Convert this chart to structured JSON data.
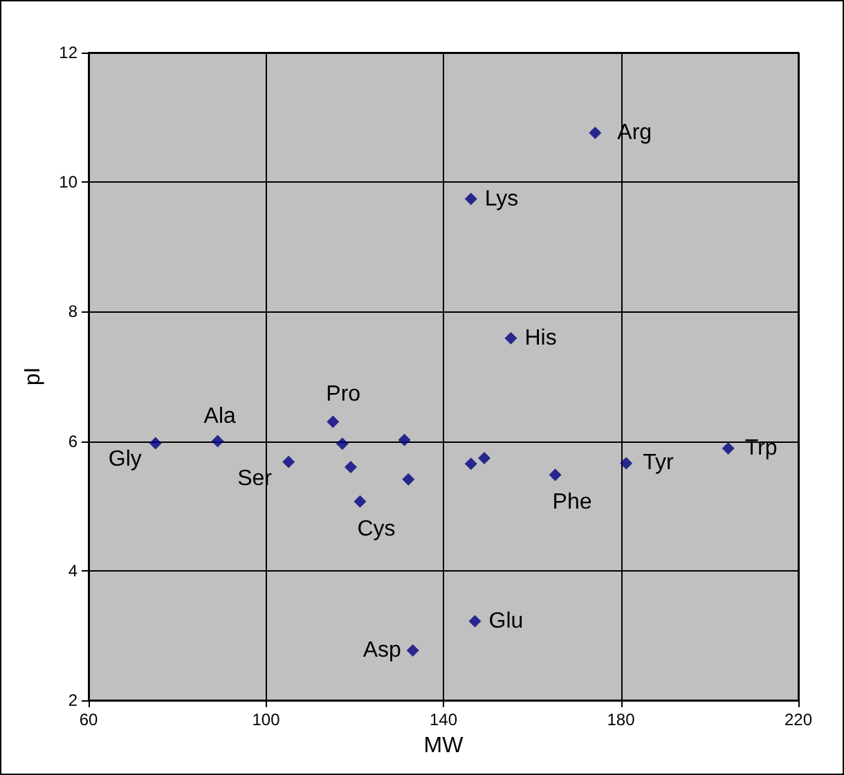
{
  "chart_data": {
    "type": "scatter",
    "xlabel": "MW",
    "ylabel": "pI",
    "x": [
      75.1,
      89.1,
      105.1,
      115.1,
      117.2,
      119.1,
      121.2,
      131.2,
      132.1,
      133.1,
      146.2,
      146.2,
      147.1,
      149.2,
      155.2,
      165.2,
      174.2,
      181.2,
      204.2
    ],
    "series": [
      {
        "color": "#000080",
        "values": [
          5.97,
          6.0,
          5.68,
          6.3,
          5.96,
          5.6,
          5.07,
          6.02,
          5.41,
          2.77,
          5.65,
          9.74,
          3.22,
          5.74,
          7.59,
          5.48,
          10.76,
          5.66,
          5.89
        ]
      }
    ],
    "xlim": [
      60,
      220
    ],
    "xticks": [
      60,
      100,
      140,
      180,
      220
    ],
    "ylim": [
      2,
      12
    ],
    "yticks": [
      2,
      4,
      6,
      8,
      10,
      12
    ],
    "grid": true,
    "marker": "diamond",
    "annotations": [
      {
        "text": "Gly",
        "x": 75.1,
        "y": 5.97
      },
      {
        "text": "Ala",
        "x": 89.1,
        "y": 6.0
      },
      {
        "text": "Ser",
        "x": 105.1,
        "y": 5.68
      },
      {
        "text": "Pro",
        "x": 115.1,
        "y": 6.3
      },
      {
        "text": "Cys",
        "x": 121.2,
        "y": 5.07
      },
      {
        "text": "Asp",
        "x": 133.1,
        "y": 2.77
      },
      {
        "text": "Lys",
        "x": 146.2,
        "y": 9.74
      },
      {
        "text": "Glu",
        "x": 147.1,
        "y": 3.22
      },
      {
        "text": "His",
        "x": 155.2,
        "y": 7.59
      },
      {
        "text": "Phe",
        "x": 165.2,
        "y": 5.48
      },
      {
        "text": "Arg",
        "x": 174.2,
        "y": 10.76
      },
      {
        "text": "Tyr",
        "x": 181.2,
        "y": 5.66
      },
      {
        "text": "Trp",
        "x": 204.2,
        "y": 5.89
      }
    ]
  }
}
